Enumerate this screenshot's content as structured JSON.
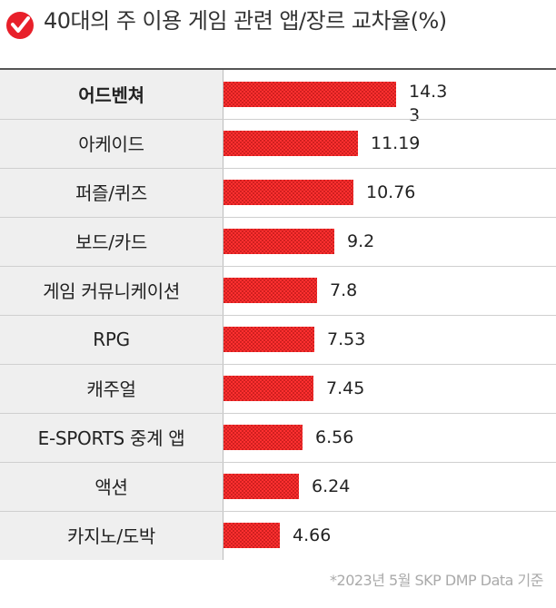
{
  "header": {
    "title": "40대의 주 이용 게임 관련 앱/장르 교차율(%)",
    "logo_icon": "checkmark-badge-icon",
    "accent_color": "#e8202a"
  },
  "footnote": "*2023년 5월 SKP DMP Data 기준",
  "chart_data": {
    "type": "bar",
    "orientation": "horizontal",
    "title": "40대의 주 이용 게임 관련 앱/장르 교차율(%)",
    "categories": [
      "어드벤쳐",
      "아케이드",
      "퍼즐/퀴즈",
      "보드/카드",
      "게임 커뮤니케이션",
      "RPG",
      "캐주얼",
      "E-SPORTS 중계 앱",
      "액션",
      "카지노/도박"
    ],
    "value_labels": [
      "14.33",
      "11.19",
      "10.76",
      "9.2",
      "7.8",
      "7.53",
      "7.45",
      "6.56",
      "6.24",
      "4.66"
    ],
    "values": [
      14.33,
      11.19,
      10.76,
      9.2,
      7.8,
      7.53,
      7.45,
      6.56,
      6.24,
      4.66
    ],
    "xlim": [
      0,
      15
    ],
    "bar_color": "#ff3030",
    "highlighted_category": "어드벤쳐",
    "legend": "none",
    "grid": false
  }
}
